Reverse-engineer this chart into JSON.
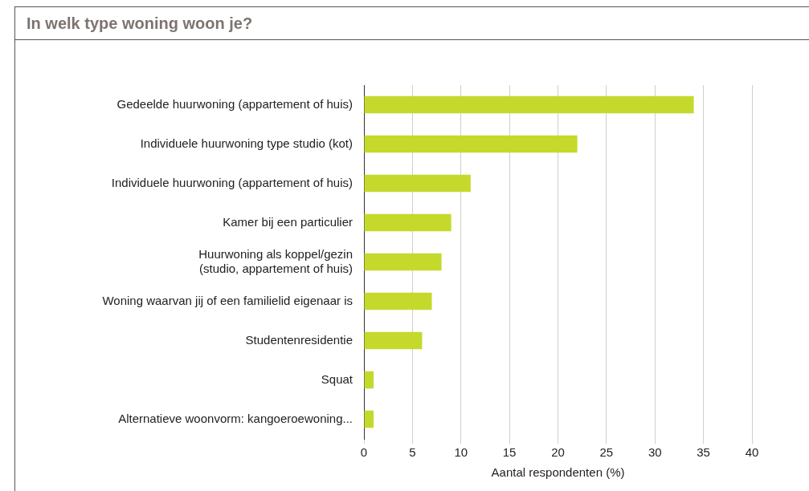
{
  "chart_data": {
    "type": "bar",
    "orientation": "horizontal",
    "title": "In welk type woning woon je?",
    "xlabel": "Aantal respondenten (%)",
    "categories": [
      "Gedeelde huurwoning (appartement of huis)",
      "Individuele huurwoning type studio (kot)",
      "Individuele huurwoning (appartement of huis)",
      "Kamer bij een particulier",
      "Huurwoning als koppel/gezin\n(studio, appartement of huis)",
      "Woning waarvan jij of een familielid eigenaar is",
      "Studentenresidentie",
      "Squat",
      "Alternatieve woonvorm: kangoeroewoning..."
    ],
    "values": [
      34,
      22,
      11,
      9,
      8,
      7,
      6,
      1,
      1
    ],
    "color": "#c5d92d",
    "xlim": [
      0,
      40
    ],
    "xticks": [
      0,
      5,
      10,
      15,
      20,
      25,
      30,
      35,
      40
    ],
    "grid": "x",
    "legend": false
  }
}
